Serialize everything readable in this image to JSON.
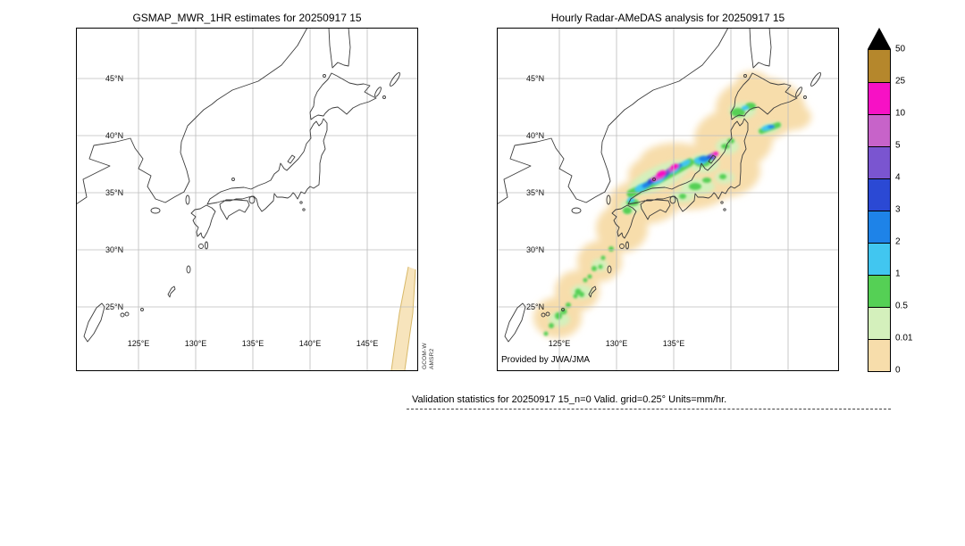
{
  "panels": {
    "left": {
      "title": "GSMAP_MWR_1HR estimates for 20250917 15",
      "sensor": [
        "GCOM-W",
        "AMSR2"
      ],
      "lat_labels": [
        "45°N",
        "40°N",
        "35°N",
        "30°N",
        "25°N"
      ],
      "lon_labels": [
        "125°E",
        "130°E",
        "135°E",
        "140°E",
        "145°E"
      ]
    },
    "right": {
      "title": "Hourly Radar-AMeDAS analysis for 20250917 15",
      "credit": "Provided by JWA/JMA",
      "lat_labels": [
        "45°N",
        "40°N",
        "35°N",
        "30°N",
        "25°N"
      ],
      "lon_labels": [
        "125°E",
        "130°E",
        "135°E"
      ]
    }
  },
  "colorbar": {
    "units": "mm/hr",
    "tick_labels": [
      "50",
      "25",
      "10",
      "5",
      "4",
      "3",
      "2",
      "1",
      "0.5",
      "0.01",
      "0"
    ],
    "over_color": "#000000",
    "segments_top_to_bottom": [
      {
        "range": "25-50",
        "color": "#b5872c"
      },
      {
        "range": "10-25",
        "color": "#f711c5"
      },
      {
        "range": "5-10",
        "color": "#c763c9"
      },
      {
        "range": "4-5",
        "color": "#7a55d0"
      },
      {
        "range": "3-4",
        "color": "#2b49d4"
      },
      {
        "range": "2-3",
        "color": "#1e83e8"
      },
      {
        "range": "1-2",
        "color": "#41c6f0"
      },
      {
        "range": "0.5-1",
        "color": "#55d055"
      },
      {
        "range": "0.01-0.5",
        "color": "#d4f0bc"
      },
      {
        "range": "0-0.01",
        "color": "#f7ddab"
      }
    ]
  },
  "caption": {
    "text": "Validation statistics for 20250917 15_n=0 Valid. grid=0.25° Units=mm/hr."
  },
  "chart_data": {
    "type": "heatmap",
    "variant": "geographic precipitation comparison maps over Japan",
    "units": "mm/hr",
    "grid_resolution_deg": 0.25,
    "valid_sample_count": 0,
    "region": {
      "lon_range": [
        120,
        149.5
      ],
      "lat_range": [
        19.5,
        49.5
      ]
    },
    "panels": [
      {
        "title": "GSMAP_MWR_1HR estimates for 20250917 15",
        "sensor": "GCOM-W AMSR2",
        "lon_ticks": [
          125,
          130,
          135,
          140,
          145
        ],
        "lat_ticks": [
          45,
          40,
          35,
          30,
          25
        ],
        "content": "No precipitation retrievals shown (n=0); only coastlines, gray graticule and a narrow pale AMSR2 swath-edge stripe in the southeast corner of the map."
      },
      {
        "title": "Hourly Radar-AMeDAS analysis for 20250917 15",
        "credit": "Provided by JWA/JMA",
        "lon_ticks": [
          125,
          130,
          135
        ],
        "lat_ticks": [
          45,
          40,
          35,
          30,
          25
        ],
        "features": [
          {
            "area": "Japan Sea offshore band along western Honshu (San-in to Kinki)",
            "intensity": "intense cores 10-25 mm/hr (magenta) ringed by 5-10 (orchid), 4-5 (violet), 3-4 (royal blue), 2-3 (azure), 1-2 (cyan), 0.5-1 (green)"
          },
          {
            "area": "cluster off Noto/Sado, central Japan Sea",
            "intensity": "up to 10-25 mm/hr small core, mostly 1-5 mm/hr"
          },
          {
            "area": "northern Kyushu coast",
            "intensity": "0.5-2 mm/hr"
          },
          {
            "area": "Pacific side of northern Tohoku",
            "intensity": "1-3 mm/hr cyan streak"
          },
          {
            "area": "southwestern Hokkaido",
            "intensity": "0.5-2 mm/hr"
          },
          {
            "area": "Kansai / Chubu and inland Tohoku",
            "intensity": "scattered 0.01-1 mm/hr green patches"
          },
          {
            "area": "East China Sea trail from Kyushu toward Okinawa",
            "intensity": "0.01-1 mm/hr speckles"
          },
          {
            "area": "broad envelope along the whole archipelago (radar coverage)",
            "intensity": "0-0.01 mm/hr pale orange"
          }
        ]
      }
    ],
    "colorbar": {
      "levels": [
        0,
        0.01,
        0.5,
        1,
        2,
        3,
        4,
        5,
        10,
        25,
        50
      ],
      "colors_low_to_high": [
        "#f7ddab",
        "#d4f0bc",
        "#55d055",
        "#41c6f0",
        "#1e83e8",
        "#2b49d4",
        "#7a55d0",
        "#c763c9",
        "#f711c5",
        "#b5872c"
      ],
      "over_50": "black up-triangle"
    }
  }
}
